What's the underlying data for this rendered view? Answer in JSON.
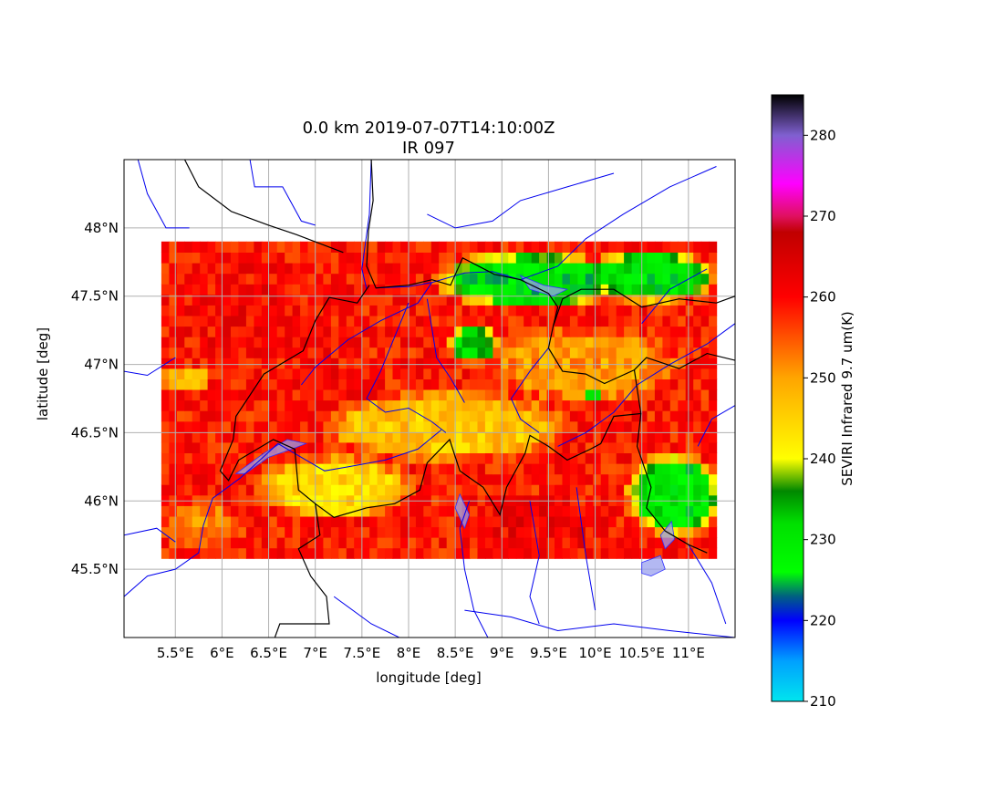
{
  "title": {
    "line1": "0.0 km 2019-07-07T14:10:00Z",
    "line2": "IR 097"
  },
  "axes": {
    "xlabel": "longitude [deg]",
    "ylabel": "latitude [deg]",
    "xlim": [
      4.95,
      11.5
    ],
    "ylim": [
      45.0,
      48.5
    ],
    "grid": true,
    "x_ticks": [
      {
        "value": 5.5,
        "label": "5.5°E"
      },
      {
        "value": 6.0,
        "label": "6°E"
      },
      {
        "value": 6.5,
        "label": "6.5°E"
      },
      {
        "value": 7.0,
        "label": "7°E"
      },
      {
        "value": 7.5,
        "label": "7.5°E"
      },
      {
        "value": 8.0,
        "label": "8°E"
      },
      {
        "value": 8.5,
        "label": "8.5°E"
      },
      {
        "value": 9.0,
        "label": "9°E"
      },
      {
        "value": 9.5,
        "label": "9.5°E"
      },
      {
        "value": 10.0,
        "label": "10°E"
      },
      {
        "value": 10.5,
        "label": "10.5°E"
      },
      {
        "value": 11.0,
        "label": "11°E"
      }
    ],
    "y_ticks": [
      {
        "value": 45.5,
        "label": "45.5°N"
      },
      {
        "value": 46.0,
        "label": "46°N"
      },
      {
        "value": 46.5,
        "label": "46.5°N"
      },
      {
        "value": 47.0,
        "label": "47°N"
      },
      {
        "value": 47.5,
        "label": "47.5°N"
      },
      {
        "value": 48.0,
        "label": "48°N"
      }
    ]
  },
  "colorbar": {
    "label": "SEVIRI Infrared 9.7 um(K)",
    "range": [
      210,
      285
    ],
    "ticks": [
      {
        "value": 210,
        "label": "210"
      },
      {
        "value": 220,
        "label": "220"
      },
      {
        "value": 230,
        "label": "230"
      },
      {
        "value": 240,
        "label": "240"
      },
      {
        "value": 250,
        "label": "250"
      },
      {
        "value": 260,
        "label": "260"
      },
      {
        "value": 270,
        "label": "270"
      },
      {
        "value": 280,
        "label": "280"
      }
    ],
    "stops": [
      {
        "value": 210,
        "color": "#00e5ee"
      },
      {
        "value": 215,
        "color": "#00a0ff"
      },
      {
        "value": 220,
        "color": "#0000ff"
      },
      {
        "value": 223,
        "color": "#006080"
      },
      {
        "value": 226,
        "color": "#00ff00"
      },
      {
        "value": 232,
        "color": "#00e000"
      },
      {
        "value": 236,
        "color": "#008800"
      },
      {
        "value": 240,
        "color": "#ffff00"
      },
      {
        "value": 250,
        "color": "#ffa500"
      },
      {
        "value": 260,
        "color": "#ff0000"
      },
      {
        "value": 268,
        "color": "#c00000"
      },
      {
        "value": 270,
        "color": "#e01060"
      },
      {
        "value": 274,
        "color": "#ff00ff"
      },
      {
        "value": 280,
        "color": "#8060d0"
      },
      {
        "value": 285,
        "color": "#000000"
      }
    ]
  },
  "field": {
    "lon_range": [
      5.35,
      11.3
    ],
    "lat_range": [
      45.58,
      47.9
    ],
    "grid_size": [
      72,
      30
    ],
    "background_value": 259,
    "cloud_regions": [
      {
        "lon": 9.3,
        "lat": 47.62,
        "rlon": 1.05,
        "rlat": 0.22,
        "value": 228
      },
      {
        "lon": 10.6,
        "lat": 47.65,
        "rlon": 0.75,
        "rlat": 0.2,
        "value": 229
      },
      {
        "lon": 8.7,
        "lat": 47.15,
        "rlon": 0.3,
        "rlat": 0.15,
        "value": 232
      },
      {
        "lon": 10.85,
        "lat": 46.05,
        "rlon": 0.55,
        "rlat": 0.32,
        "value": 229
      },
      {
        "lon": 10.0,
        "lat": 46.78,
        "rlon": 0.12,
        "rlat": 0.08,
        "value": 234
      },
      {
        "lon": 8.4,
        "lat": 46.55,
        "rlon": 1.4,
        "rlat": 0.28,
        "value": 246
      },
      {
        "lon": 7.2,
        "lat": 46.1,
        "rlon": 0.9,
        "rlat": 0.25,
        "value": 244
      },
      {
        "lon": 9.9,
        "lat": 47.0,
        "rlon": 1.1,
        "rlat": 0.3,
        "value": 250
      },
      {
        "lon": 5.8,
        "lat": 45.8,
        "rlon": 0.45,
        "rlat": 0.2,
        "value": 252
      },
      {
        "lon": 5.6,
        "lat": 46.9,
        "rlon": 0.3,
        "rlat": 0.12,
        "value": 248
      }
    ],
    "warm_regions": [
      {
        "lon": 6.3,
        "lat": 47.4,
        "rlon": 1.0,
        "rlat": 0.45,
        "value": 261
      },
      {
        "lon": 9.4,
        "lat": 45.8,
        "rlon": 0.9,
        "rlat": 0.25,
        "value": 262
      },
      {
        "lon": 7.1,
        "lat": 46.85,
        "rlon": 0.7,
        "rlat": 0.3,
        "value": 260
      }
    ]
  },
  "borders": [
    [
      [
        7.6,
        48.5
      ],
      [
        7.62,
        48.2
      ],
      [
        7.57,
        47.98
      ],
      [
        7.55,
        47.72
      ],
      [
        7.65,
        47.56
      ],
      [
        8.0,
        47.58
      ],
      [
        8.25,
        47.62
      ],
      [
        8.45,
        47.58
      ],
      [
        8.58,
        47.78
      ],
      [
        8.75,
        47.72
      ],
      [
        8.92,
        47.66
      ],
      [
        9.2,
        47.62
      ],
      [
        9.5,
        47.52
      ],
      [
        9.6,
        47.42
      ],
      [
        9.55,
        47.28
      ],
      [
        9.5,
        47.12
      ],
      [
        9.65,
        46.95
      ],
      [
        9.9,
        46.93
      ],
      [
        10.1,
        46.86
      ],
      [
        10.42,
        46.96
      ],
      [
        10.49,
        46.64
      ],
      [
        10.2,
        46.62
      ],
      [
        10.06,
        46.42
      ],
      [
        9.95,
        46.38
      ],
      [
        9.7,
        46.3
      ],
      [
        9.5,
        46.4
      ],
      [
        9.3,
        46.48
      ],
      [
        9.25,
        46.35
      ],
      [
        9.05,
        46.1
      ],
      [
        8.98,
        45.9
      ],
      [
        8.8,
        46.1
      ],
      [
        8.55,
        46.22
      ],
      [
        8.44,
        46.45
      ],
      [
        8.2,
        46.28
      ],
      [
        8.12,
        46.08
      ],
      [
        7.85,
        45.98
      ],
      [
        7.55,
        45.95
      ],
      [
        7.2,
        45.88
      ],
      [
        7.0,
        45.98
      ],
      [
        6.82,
        46.08
      ],
      [
        6.78,
        46.38
      ],
      [
        6.55,
        46.45
      ],
      [
        6.18,
        46.3
      ],
      [
        6.07,
        46.15
      ],
      [
        5.98,
        46.22
      ],
      [
        6.12,
        46.45
      ],
      [
        6.15,
        46.62
      ],
      [
        6.45,
        46.93
      ],
      [
        6.87,
        47.1
      ],
      [
        7.0,
        47.32
      ],
      [
        7.15,
        47.49
      ],
      [
        7.45,
        47.45
      ],
      [
        7.58,
        47.58
      ]
    ],
    [
      [
        10.42,
        46.96
      ],
      [
        10.55,
        47.05
      ],
      [
        10.9,
        46.97
      ],
      [
        11.2,
        47.08
      ],
      [
        11.5,
        47.03
      ]
    ],
    [
      [
        9.55,
        47.28
      ],
      [
        9.65,
        47.48
      ],
      [
        9.85,
        47.55
      ],
      [
        10.2,
        47.55
      ],
      [
        10.5,
        47.42
      ],
      [
        10.9,
        47.48
      ],
      [
        11.3,
        47.45
      ],
      [
        11.5,
        47.5
      ]
    ],
    [
      [
        10.49,
        46.64
      ],
      [
        10.45,
        46.4
      ],
      [
        10.6,
        46.1
      ],
      [
        10.55,
        45.95
      ],
      [
        10.75,
        45.78
      ],
      [
        11.0,
        45.68
      ],
      [
        11.2,
        45.62
      ]
    ],
    [
      [
        7.0,
        45.98
      ],
      [
        7.05,
        45.75
      ],
      [
        6.82,
        45.65
      ],
      [
        6.95,
        45.45
      ],
      [
        7.12,
        45.3
      ],
      [
        7.15,
        45.1
      ],
      [
        6.62,
        45.1
      ],
      [
        6.55,
        44.97
      ]
    ],
    [
      [
        5.6,
        48.5
      ],
      [
        5.75,
        48.3
      ],
      [
        6.1,
        48.12
      ],
      [
        6.5,
        48.02
      ],
      [
        6.8,
        47.95
      ],
      [
        7.3,
        47.82
      ]
    ]
  ],
  "rivers": [
    [
      [
        7.6,
        48.5
      ],
      [
        7.58,
        48.1
      ],
      [
        7.5,
        47.7
      ],
      [
        7.55,
        47.55
      ]
    ],
    [
      [
        9.2,
        47.62
      ],
      [
        8.9,
        47.68
      ],
      [
        8.6,
        47.67
      ],
      [
        8.25,
        47.6
      ],
      [
        8.0,
        47.57
      ],
      [
        7.65,
        47.56
      ]
    ],
    [
      [
        8.25,
        47.6
      ],
      [
        8.1,
        47.45
      ],
      [
        7.7,
        47.32
      ],
      [
        7.35,
        47.18
      ],
      [
        7.0,
        46.98
      ],
      [
        6.85,
        46.85
      ]
    ],
    [
      [
        8.2,
        47.48
      ],
      [
        8.3,
        47.05
      ],
      [
        8.45,
        46.9
      ],
      [
        8.6,
        46.72
      ]
    ],
    [
      [
        8.0,
        47.45
      ],
      [
        7.85,
        47.2
      ],
      [
        7.7,
        46.95
      ],
      [
        7.55,
        46.75
      ],
      [
        7.75,
        46.65
      ],
      [
        8.0,
        46.68
      ],
      [
        8.25,
        46.58
      ],
      [
        8.4,
        46.5
      ]
    ],
    [
      [
        6.2,
        46.17
      ],
      [
        6.6,
        46.42
      ],
      [
        6.85,
        46.32
      ],
      [
        7.1,
        46.22
      ],
      [
        7.35,
        46.25
      ],
      [
        7.75,
        46.3
      ],
      [
        8.1,
        46.38
      ],
      [
        8.35,
        46.52
      ]
    ],
    [
      [
        6.2,
        46.17
      ],
      [
        5.9,
        46.02
      ],
      [
        5.8,
        45.82
      ],
      [
        5.75,
        45.62
      ],
      [
        5.5,
        45.5
      ],
      [
        5.2,
        45.45
      ],
      [
        4.95,
        45.3
      ]
    ],
    [
      [
        9.5,
        47.12
      ],
      [
        9.3,
        46.95
      ],
      [
        9.1,
        46.75
      ],
      [
        9.2,
        46.6
      ],
      [
        9.4,
        46.5
      ]
    ],
    [
      [
        9.6,
        46.4
      ],
      [
        9.9,
        46.5
      ],
      [
        10.2,
        46.65
      ],
      [
        10.45,
        46.85
      ],
      [
        10.8,
        47.0
      ],
      [
        11.2,
        47.15
      ],
      [
        11.5,
        47.3
      ]
    ],
    [
      [
        8.65,
        46.0
      ],
      [
        8.55,
        45.8
      ],
      [
        8.6,
        45.5
      ],
      [
        8.7,
        45.2
      ],
      [
        8.85,
        45.0
      ]
    ],
    [
      [
        9.3,
        46.0
      ],
      [
        9.4,
        45.6
      ],
      [
        9.3,
        45.3
      ],
      [
        9.4,
        45.1
      ]
    ],
    [
      [
        9.8,
        46.1
      ],
      [
        9.9,
        45.6
      ],
      [
        10.0,
        45.2
      ]
    ],
    [
      [
        11.0,
        45.68
      ],
      [
        11.25,
        45.4
      ],
      [
        11.4,
        45.1
      ]
    ],
    [
      [
        8.6,
        45.2
      ],
      [
        9.1,
        45.15
      ],
      [
        9.6,
        45.05
      ],
      [
        10.2,
        45.1
      ],
      [
        10.8,
        45.05
      ],
      [
        11.5,
        45.0
      ]
    ],
    [
      [
        7.2,
        45.3
      ],
      [
        7.6,
        45.1
      ],
      [
        7.9,
        45.0
      ]
    ],
    [
      [
        4.95,
        45.75
      ],
      [
        5.3,
        45.8
      ],
      [
        5.5,
        45.7
      ]
    ],
    [
      [
        5.1,
        48.5
      ],
      [
        5.2,
        48.25
      ],
      [
        5.4,
        48.0
      ],
      [
        5.65,
        48.0
      ]
    ],
    [
      [
        6.3,
        48.5
      ],
      [
        6.35,
        48.3
      ],
      [
        6.65,
        48.3
      ],
      [
        6.85,
        48.05
      ],
      [
        7.0,
        48.02
      ]
    ],
    [
      [
        9.2,
        47.62
      ],
      [
        9.6,
        47.72
      ],
      [
        9.9,
        47.92
      ],
      [
        10.3,
        48.1
      ],
      [
        10.8,
        48.3
      ],
      [
        11.3,
        48.45
      ]
    ],
    [
      [
        8.2,
        48.1
      ],
      [
        8.5,
        48.0
      ],
      [
        8.9,
        48.05
      ],
      [
        9.2,
        48.2
      ],
      [
        9.7,
        48.3
      ],
      [
        10.2,
        48.4
      ]
    ],
    [
      [
        10.5,
        47.3
      ],
      [
        10.8,
        47.55
      ],
      [
        11.2,
        47.7
      ]
    ],
    [
      [
        11.5,
        46.7
      ],
      [
        11.25,
        46.6
      ],
      [
        11.1,
        46.4
      ]
    ],
    [
      [
        4.95,
        46.95
      ],
      [
        5.2,
        46.92
      ],
      [
        5.5,
        47.05
      ]
    ]
  ],
  "lakes": [
    [
      [
        6.15,
        46.2
      ],
      [
        6.45,
        46.35
      ],
      [
        6.7,
        46.45
      ],
      [
        6.9,
        46.42
      ],
      [
        6.75,
        46.38
      ],
      [
        6.5,
        46.32
      ],
      [
        6.25,
        46.2
      ]
    ],
    [
      [
        9.2,
        47.65
      ],
      [
        9.45,
        47.58
      ],
      [
        9.7,
        47.55
      ],
      [
        9.55,
        47.5
      ],
      [
        9.3,
        47.55
      ]
    ],
    [
      [
        10.5,
        45.55
      ],
      [
        10.7,
        45.6
      ],
      [
        10.75,
        45.5
      ],
      [
        10.6,
        45.45
      ],
      [
        10.5,
        45.47
      ]
    ],
    [
      [
        10.7,
        45.75
      ],
      [
        10.82,
        45.85
      ],
      [
        10.85,
        45.72
      ],
      [
        10.75,
        45.65
      ]
    ],
    [
      [
        8.55,
        46.05
      ],
      [
        8.65,
        45.9
      ],
      [
        8.6,
        45.8
      ],
      [
        8.5,
        45.95
      ]
    ]
  ]
}
